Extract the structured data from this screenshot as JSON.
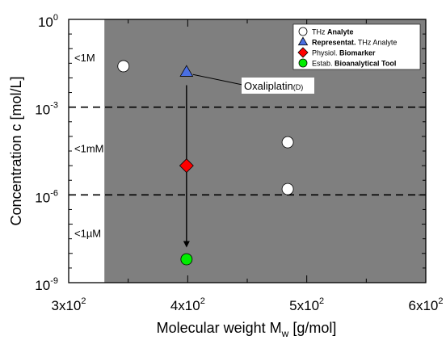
{
  "chart_data": {
    "type": "scatter",
    "xlabel_main": "Molecular weight M",
    "xlabel_sub": "w",
    "xlabel_unit": " [g/mol]",
    "ylabel": "Concentration c [mol/L]",
    "xlim": [
      300,
      600
    ],
    "ylim_log10": [
      -9,
      0
    ],
    "x_ticks": [
      {
        "value": 300,
        "mantissa": "3x10",
        "exp": "2"
      },
      {
        "value": 400,
        "mantissa": "4x10",
        "exp": "2"
      },
      {
        "value": 500,
        "mantissa": "5x10",
        "exp": "2"
      },
      {
        "value": 600,
        "mantissa": "6x10",
        "exp": "2"
      }
    ],
    "y_ticks": [
      {
        "log": 0,
        "base": "10",
        "exp": "0"
      },
      {
        "log": -3,
        "base": "10",
        "exp": "-3"
      },
      {
        "log": -6,
        "base": "10",
        "exp": "-6"
      },
      {
        "log": -9,
        "base": "10",
        "exp": "-9"
      }
    ],
    "shaded_region_x_start": 330,
    "threshold_lines_log10": [
      -3,
      -6
    ],
    "region_labels": [
      {
        "text": "<1M",
        "log": -1.3
      },
      {
        "text": "<1mM",
        "log": -4.4
      },
      {
        "text": "<1µM",
        "log": -7.3
      }
    ],
    "series": [
      {
        "name_plain": "THz ",
        "name_bold": "Analyte",
        "marker": "circle",
        "color": "#ffffff",
        "points": [
          {
            "x": 346,
            "y_log10": -1.6
          },
          {
            "x": 484,
            "y_log10": -4.2
          },
          {
            "x": 484,
            "y_log10": -5.8
          }
        ]
      },
      {
        "name_plain": " THz Analyte",
        "name_bold": "Representat.",
        "bold_first": true,
        "marker": "triangle",
        "color": "#4a6fe3",
        "points": [
          {
            "x": 399,
            "y_log10": -1.8
          }
        ]
      },
      {
        "name_plain": "Physiol. ",
        "name_bold": "Biomarker",
        "marker": "diamond",
        "color": "#ff0000",
        "points": [
          {
            "x": 399,
            "y_log10": -5.0
          }
        ]
      },
      {
        "name_plain": "Estab. ",
        "name_bold": "Bioanalytical Tool",
        "marker": "circle",
        "color": "#00ee00",
        "points": [
          {
            "x": 399,
            "y_log10": -8.2
          }
        ]
      }
    ],
    "annotation": {
      "text": "Oxaliplatin",
      "sub": "(D)"
    },
    "legend_position": "top-right",
    "colors": {
      "region": "#7f7f7f",
      "lines": "#000000"
    }
  }
}
